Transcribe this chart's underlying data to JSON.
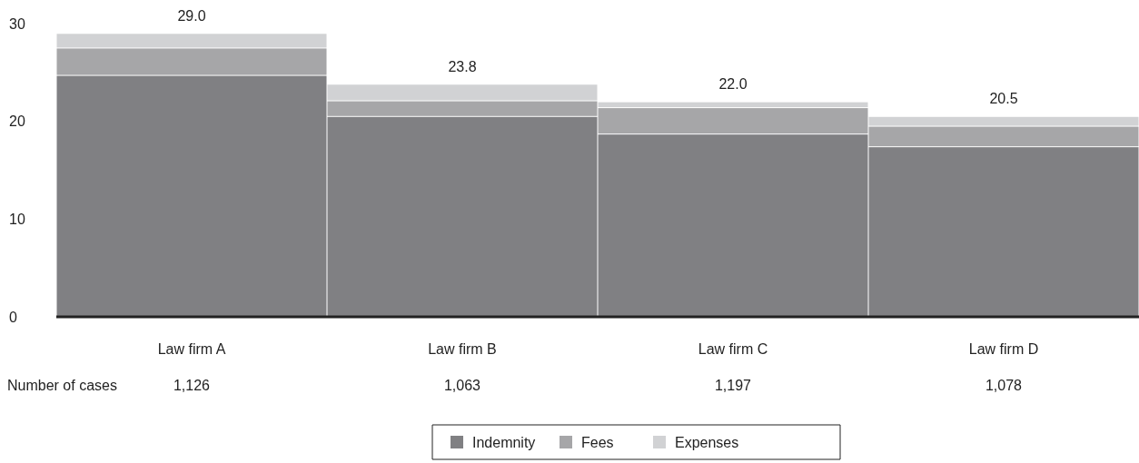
{
  "chart_data": {
    "type": "bar",
    "stacked": true,
    "categories": [
      "Law firm A",
      "Law firm B",
      "Law firm C",
      "Law firm D"
    ],
    "series": [
      {
        "name": "Indemnity",
        "color": "#808083",
        "values": [
          24.7,
          20.5,
          18.7,
          17.4
        ]
      },
      {
        "name": "Fees",
        "color": "#a6a6a8",
        "values": [
          2.8,
          1.6,
          2.7,
          2.1
        ]
      },
      {
        "name": "Expenses",
        "color": "#d1d2d4",
        "values": [
          1.5,
          1.7,
          0.6,
          1.0
        ]
      }
    ],
    "totals": [
      "29.0",
      "23.8",
      "22.0",
      "20.5"
    ],
    "ylim": [
      0,
      30
    ],
    "yticks": [
      0,
      10,
      20,
      30
    ],
    "grid": false,
    "legend": "bottom",
    "annotations": [
      "Number of cases",
      "1,126",
      "1,063",
      "1,197",
      "1,078"
    ]
  }
}
